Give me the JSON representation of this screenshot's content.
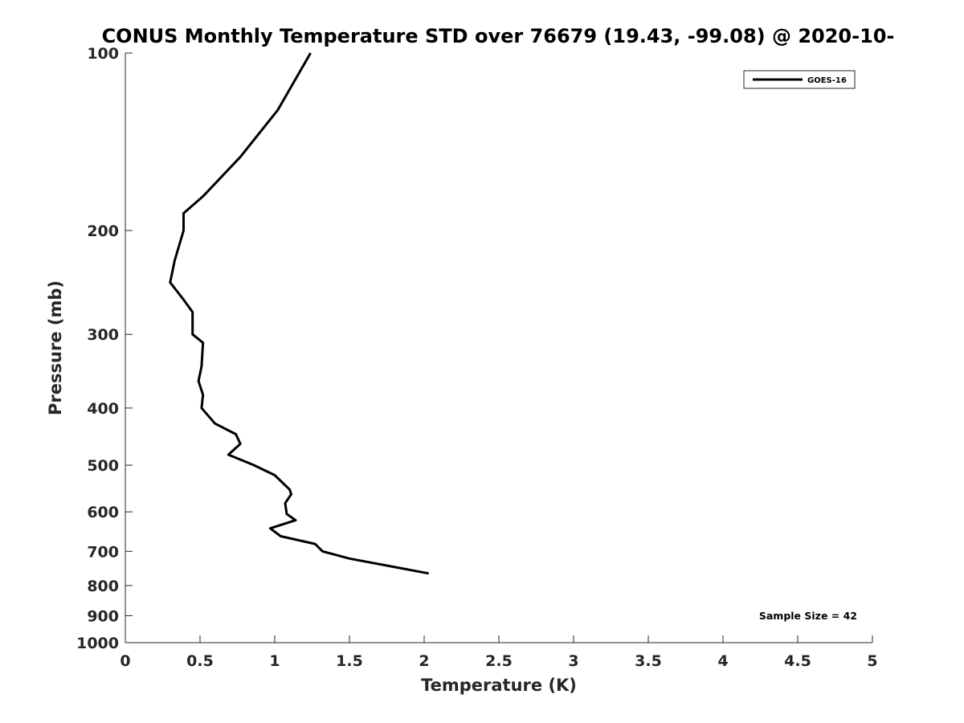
{
  "chart_data": {
    "type": "line",
    "title": "CONUS Monthly Temperature STD over 76679 (19.43, -99.08) @ 2020-10-",
    "xlabel": "Temperature (K)",
    "ylabel": "Pressure (mb)",
    "xlim": [
      0,
      5
    ],
    "ylim": [
      100,
      1000
    ],
    "yscale": "log",
    "y_reversed": true,
    "grid": false,
    "legend_position": "top-right",
    "x_ticks": [
      "0",
      "0.5",
      "1",
      "1.5",
      "2",
      "2.5",
      "3",
      "3.5",
      "4",
      "4.5",
      "5"
    ],
    "y_ticks": [
      "100",
      "200",
      "300",
      "400",
      "500",
      "600",
      "700",
      "800",
      "900",
      "1000"
    ],
    "series": [
      {
        "name": "GOES-16",
        "color": "#000000",
        "points": [
          [
            1.24,
            100
          ],
          [
            1.02,
            125
          ],
          [
            0.77,
            150
          ],
          [
            0.52,
            175
          ],
          [
            0.39,
            187
          ],
          [
            0.39,
            200
          ],
          [
            0.33,
            225
          ],
          [
            0.3,
            245
          ],
          [
            0.39,
            262
          ],
          [
            0.45,
            275
          ],
          [
            0.45,
            300
          ],
          [
            0.52,
            310
          ],
          [
            0.51,
            340
          ],
          [
            0.49,
            360
          ],
          [
            0.52,
            380
          ],
          [
            0.51,
            400
          ],
          [
            0.6,
            425
          ],
          [
            0.74,
            443
          ],
          [
            0.77,
            460
          ],
          [
            0.69,
            480
          ],
          [
            0.86,
            500
          ],
          [
            1.0,
            520
          ],
          [
            1.1,
            550
          ],
          [
            1.11,
            560
          ],
          [
            1.07,
            580
          ],
          [
            1.08,
            605
          ],
          [
            1.14,
            620
          ],
          [
            0.97,
            640
          ],
          [
            1.04,
            660
          ],
          [
            1.27,
            680
          ],
          [
            1.32,
            700
          ],
          [
            1.5,
            720
          ],
          [
            2.03,
            763
          ]
        ]
      }
    ],
    "annotation": "Sample Size = 42"
  }
}
